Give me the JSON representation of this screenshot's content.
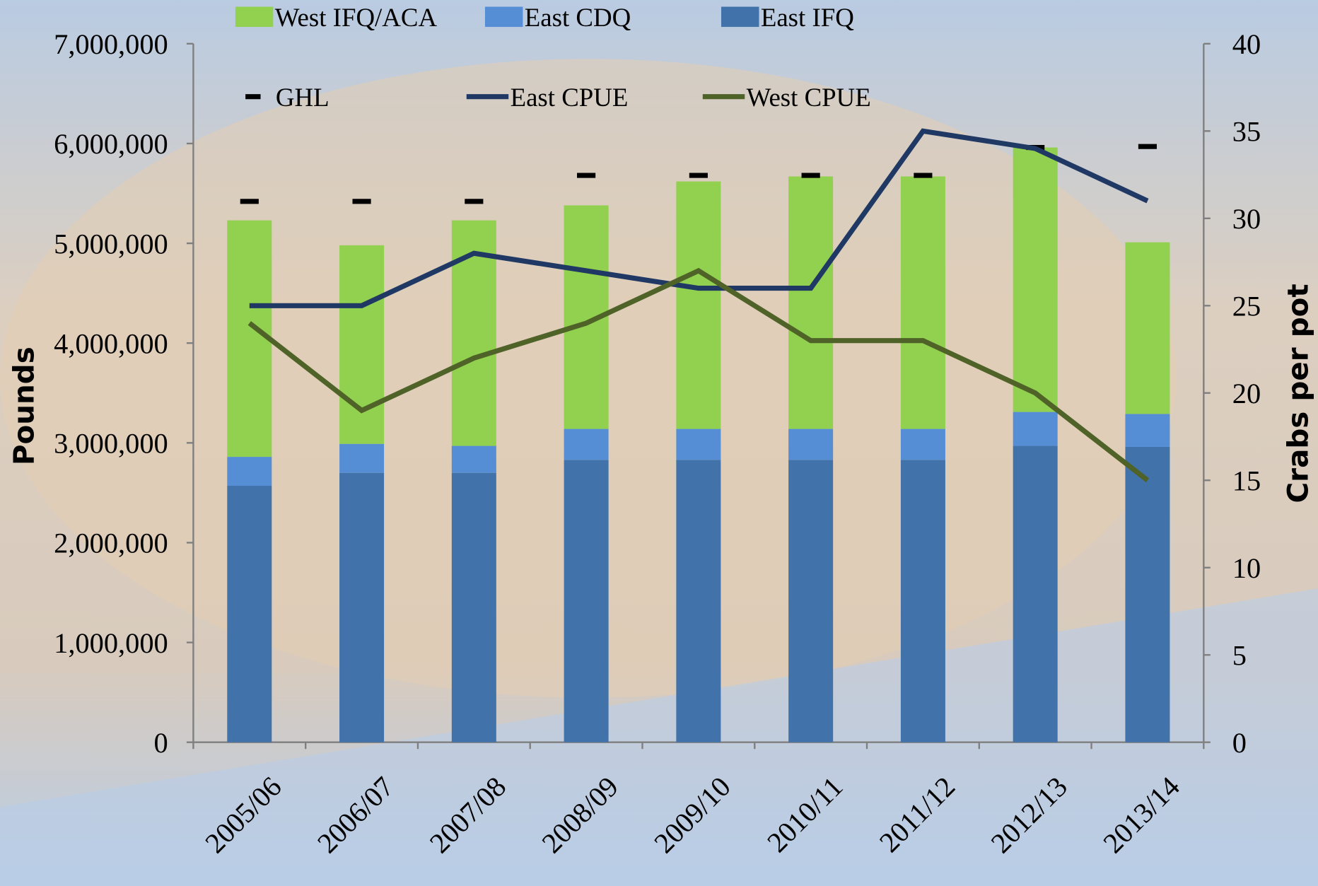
{
  "chart_data": {
    "type": "bar",
    "categories": [
      "2005/06",
      "2006/07",
      "2007/08",
      "2008/09",
      "2009/10",
      "2010/11",
      "2011/12",
      "2012/13",
      "2013/14"
    ],
    "series": [
      {
        "name": "West IFQ/ACA",
        "type": "bar",
        "color": "#92d050",
        "values": [
          2370000,
          1990000,
          2260000,
          2240000,
          2480000,
          2530000,
          2530000,
          2650000,
          1720000
        ]
      },
      {
        "name": "East CDQ",
        "type": "bar",
        "color": "#558ed5",
        "values": [
          290000,
          290000,
          270000,
          310000,
          310000,
          310000,
          310000,
          340000,
          330000
        ]
      },
      {
        "name": "East IFQ",
        "type": "bar",
        "color": "#4172aa",
        "values": [
          2570000,
          2700000,
          2700000,
          2830000,
          2830000,
          2830000,
          2830000,
          2970000,
          2960000
        ]
      },
      {
        "name": "GHL",
        "type": "marker",
        "color": "#000000",
        "values": [
          5420000,
          5420000,
          5420000,
          5680000,
          5680000,
          5680000,
          5680000,
          5960000,
          5970000
        ]
      },
      {
        "name": "East CPUE",
        "type": "line",
        "axis": "y2",
        "color": "#1f3864",
        "values": [
          25,
          25,
          28,
          27,
          26,
          26,
          35,
          34,
          31
        ]
      },
      {
        "name": "West CPUE",
        "type": "line",
        "axis": "y2",
        "color": "#4f6228",
        "values": [
          24,
          19,
          22,
          24,
          27,
          23,
          23,
          20,
          15
        ]
      }
    ],
    "ylabel": "Pounds",
    "y2label": "Crabs per pot",
    "ylim": [
      0,
      7000000
    ],
    "yticks": [
      0,
      {
        "value": 1000000,
        "label": "1,000,000"
      },
      {
        "value": 2000000,
        "label": "2,000,000"
      },
      {
        "value": 3000000,
        "label": "3,000,000"
      },
      {
        "value": 4000000,
        "label": "4,000,000"
      },
      {
        "value": 5000000,
        "label": "5,000,000"
      },
      {
        "value": 6000000,
        "label": "6,000,000"
      },
      {
        "value": 7000000,
        "label": "7,000,000"
      }
    ],
    "y2lim": [
      0,
      40
    ],
    "y2ticks": [
      0,
      5,
      10,
      15,
      20,
      25,
      30,
      35,
      40
    ]
  }
}
